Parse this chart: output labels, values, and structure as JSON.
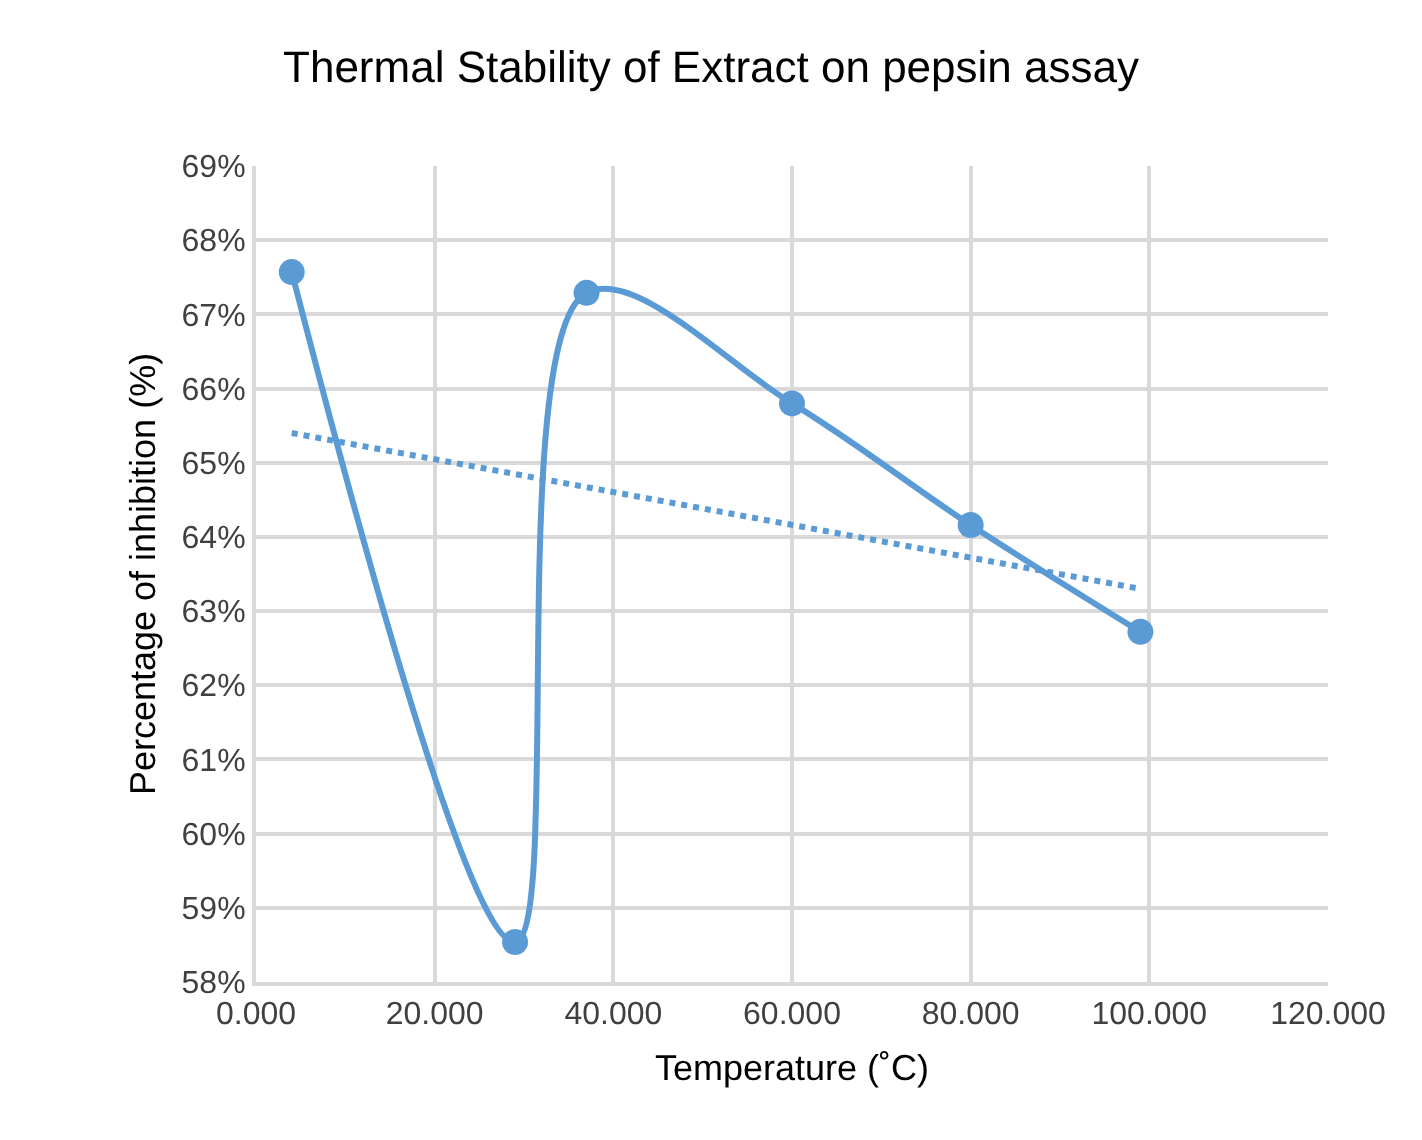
{
  "chart_data": {
    "type": "line",
    "title": "Thermal Stability of Extract on pepsin assay",
    "xlabel": "Temperature (˚C)",
    "ylabel": "Percentage of inhibition (%)",
    "series": [
      {
        "marker": "circle",
        "line_style": "solid",
        "color": "#5b9bd5",
        "x": [
          4,
          29,
          37,
          60,
          80,
          99
        ],
        "values": [
          67.57,
          58.54,
          67.29,
          65.8,
          64.16,
          62.72
        ]
      },
      {
        "marker": "none",
        "line_style": "dotted",
        "color": "#5b9bd5",
        "x": [
          4,
          99
        ],
        "values": [
          65.4,
          63.3
        ]
      }
    ],
    "xlim": [
      0,
      120
    ],
    "xticks": [
      {
        "value": 0,
        "label": "0.000"
      },
      {
        "value": 20,
        "label": "20.000"
      },
      {
        "value": 40,
        "label": "40.000"
      },
      {
        "value": 60,
        "label": "60.000"
      },
      {
        "value": 80,
        "label": "80.000"
      },
      {
        "value": 100,
        "label": "100.000"
      },
      {
        "value": 120,
        "label": "120.000"
      }
    ],
    "ylim": [
      58,
      69
    ],
    "yticks": [
      {
        "value": 58,
        "label": "58%"
      },
      {
        "value": 59,
        "label": "59%"
      },
      {
        "value": 60,
        "label": "60%"
      },
      {
        "value": 61,
        "label": "61%"
      },
      {
        "value": 62,
        "label": "62%"
      },
      {
        "value": 63,
        "label": "63%"
      },
      {
        "value": 64,
        "label": "64%"
      },
      {
        "value": 65,
        "label": "65%"
      },
      {
        "value": 66,
        "label": "66%"
      },
      {
        "value": 67,
        "label": "67%"
      },
      {
        "value": 68,
        "label": "68%"
      },
      {
        "value": 69,
        "label": "69%"
      }
    ],
    "grid": true
  }
}
